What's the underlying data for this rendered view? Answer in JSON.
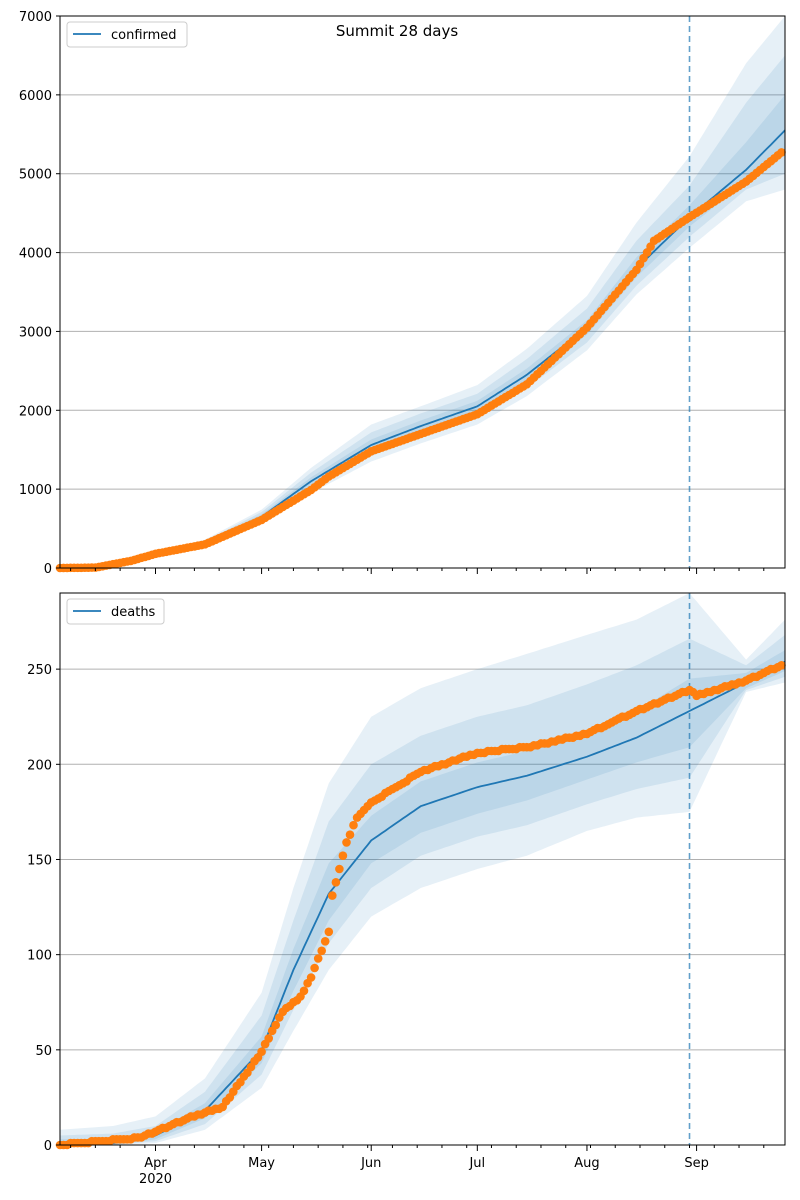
{
  "title": "Summit 28 days",
  "colors": {
    "model_line": "#1f77b4",
    "observed": "#ff7f0e",
    "band": "#1f77b4",
    "grid": "#b0b0b0",
    "axis": "#000000"
  },
  "chart_data": [
    {
      "type": "line",
      "legend": "confirmed",
      "legend_position": "top-left",
      "grid": "horizontal",
      "x_type": "date",
      "xlim": [
        "2020-03-05",
        "2020-09-26"
      ],
      "forecast_start": "2020-08-30",
      "ylim": [
        0,
        7000
      ],
      "yticks": [
        0,
        1000,
        2000,
        3000,
        4000,
        5000,
        6000,
        7000
      ],
      "model": {
        "x": [
          "2020-03-05",
          "2020-03-20",
          "2020-04-01",
          "2020-04-15",
          "2020-05-01",
          "2020-05-15",
          "2020-06-01",
          "2020-06-15",
          "2020-07-01",
          "2020-07-15",
          "2020-08-01",
          "2020-08-15",
          "2020-08-30",
          "2020-09-15",
          "2020-09-26"
        ],
        "y": [
          0,
          40,
          180,
          320,
          650,
          1100,
          1560,
          1800,
          2050,
          2450,
          3050,
          3800,
          4450,
          5050,
          5550
        ],
        "bands": [
          {
            "lower": [
              0,
              25,
              160,
              290,
              570,
              950,
              1350,
              1580,
              1820,
              2180,
              2760,
              3470,
              4060,
              4650,
              4800
            ],
            "upper": [
              5,
              60,
              200,
              360,
              740,
              1270,
              1820,
              2050,
              2320,
              2780,
              3450,
              4380,
              5220,
              6400,
              7000
            ]
          },
          {
            "lower": [
              0,
              30,
              165,
              300,
              595,
              1010,
              1420,
              1660,
              1900,
              2280,
              2860,
              3580,
              4200,
              4800,
              5000
            ],
            "upper": [
              4,
              52,
              193,
              342,
              710,
              1210,
              1720,
              1960,
              2210,
              2650,
              3290,
              4150,
              4850,
              5900,
              6500
            ]
          },
          {
            "lower": [
              0,
              35,
              172,
              310,
              625,
              1055,
              1490,
              1730,
              1975,
              2370,
              2960,
              3690,
              4330,
              4900,
              5250
            ],
            "upper": [
              2,
              45,
              187,
              331,
              680,
              1150,
              1630,
              1870,
              2120,
              2530,
              3140,
              3940,
              4600,
              5400,
              6000
            ]
          }
        ]
      },
      "observed": {
        "x": [
          "2020-03-05",
          "2020-03-15",
          "2020-03-25",
          "2020-04-01",
          "2020-04-15",
          "2020-05-01",
          "2020-05-15",
          "2020-05-20",
          "2020-06-01",
          "2020-06-15",
          "2020-07-01",
          "2020-07-15",
          "2020-08-01",
          "2020-08-15",
          "2020-08-20",
          "2020-08-30",
          "2020-09-15",
          "2020-09-25"
        ],
        "y": [
          0,
          5,
          90,
          180,
          300,
          610,
          990,
          1160,
          1480,
          1700,
          1950,
          2330,
          3050,
          3780,
          4150,
          4450,
          4900,
          5270
        ]
      }
    },
    {
      "type": "line",
      "legend": "deaths",
      "legend_position": "top-left",
      "grid": "horizontal",
      "x_type": "date",
      "xlim": [
        "2020-03-05",
        "2020-09-26"
      ],
      "forecast_start": "2020-08-30",
      "ylim": [
        0,
        290
      ],
      "yticks": [
        0,
        50,
        100,
        150,
        200,
        250
      ],
      "xticks": [
        {
          "date": "2020-04-01",
          "label": "Apr",
          "sub": "2020"
        },
        {
          "date": "2020-05-01",
          "label": "May"
        },
        {
          "date": "2020-06-01",
          "label": "Jun"
        },
        {
          "date": "2020-07-01",
          "label": "Jul"
        },
        {
          "date": "2020-08-01",
          "label": "Aug"
        },
        {
          "date": "2020-09-01",
          "label": "Sep"
        }
      ],
      "model": {
        "x": [
          "2020-03-05",
          "2020-03-20",
          "2020-04-01",
          "2020-04-15",
          "2020-05-01",
          "2020-05-10",
          "2020-05-20",
          "2020-06-01",
          "2020-06-15",
          "2020-07-01",
          "2020-07-15",
          "2020-08-01",
          "2020-08-15",
          "2020-08-30",
          "2020-09-15",
          "2020-09-26"
        ],
        "y": [
          0,
          1,
          5,
          18,
          50,
          92,
          132,
          160,
          178,
          188,
          194,
          204,
          214,
          228,
          243,
          254
        ],
        "bands": [
          {
            "lower": [
              0,
              0,
              1,
              8,
              30,
              60,
              92,
              120,
              135,
              145,
              152,
              165,
              172,
              175,
              238,
              243
            ],
            "upper": [
              8,
              10,
              15,
              35,
              80,
              135,
              190,
              225,
              240,
              250,
              258,
              268,
              276,
              290,
              255,
              276
            ]
          },
          {
            "lower": [
              0,
              0,
              2,
              11,
              37,
              71,
              106,
              135,
              152,
              162,
              168,
              179,
              187,
              193,
              239,
              246
            ],
            "upper": [
              5,
              6,
              10,
              28,
              68,
              118,
              170,
              200,
              215,
              225,
              231,
              242,
              252,
              266,
              252,
              268
            ]
          },
          {
            "lower": [
              0,
              0,
              3,
              14,
              43,
              81,
              118,
              148,
              164,
              174,
              181,
              192,
              201,
              209,
              240,
              249
            ],
            "upper": [
              3,
              3,
              7,
              22,
              57,
              103,
              148,
              173,
              191,
              201,
              207,
              218,
              228,
              245,
              248,
              260
            ]
          }
        ]
      },
      "observed": {
        "x": [
          "2020-03-05",
          "2020-03-28",
          "2020-04-01",
          "2020-04-10",
          "2020-04-20",
          "2020-05-01",
          "2020-05-07",
          "2020-05-12",
          "2020-05-15",
          "2020-05-20",
          "2020-05-21",
          "2020-05-25",
          "2020-05-28",
          "2020-06-01",
          "2020-06-15",
          "2020-07-01",
          "2020-07-15",
          "2020-08-01",
          "2020-08-15",
          "2020-08-30",
          "2020-09-01",
          "2020-09-15",
          "2020-09-25"
        ],
        "y": [
          0,
          4,
          7,
          14,
          20,
          49,
          70,
          78,
          88,
          112,
          131,
          159,
          172,
          180,
          196,
          206,
          209,
          216,
          228,
          239,
          236,
          244,
          252
        ]
      }
    }
  ]
}
